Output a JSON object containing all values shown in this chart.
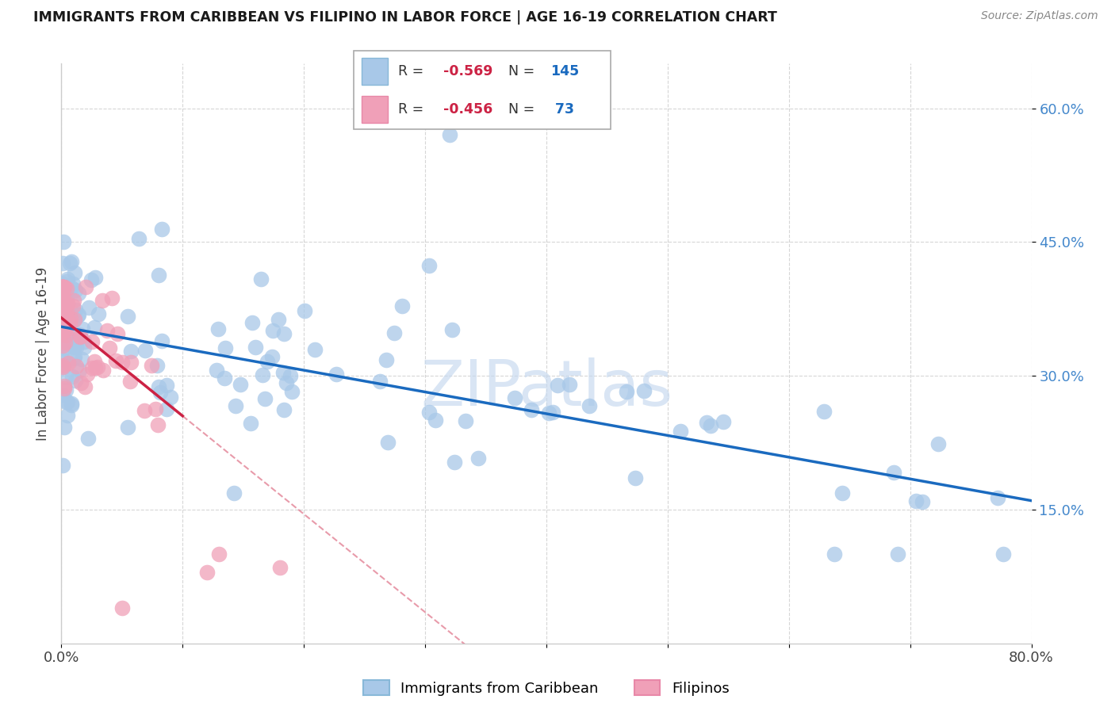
{
  "title": "IMMIGRANTS FROM CARIBBEAN VS FILIPINO IN LABOR FORCE | AGE 16-19 CORRELATION CHART",
  "source": "Source: ZipAtlas.com",
  "ylabel": "In Labor Force | Age 16-19",
  "xlim": [
    0.0,
    0.8
  ],
  "ylim": [
    0.0,
    0.65
  ],
  "yticks": [
    0.15,
    0.3,
    0.45,
    0.6
  ],
  "ytick_labels": [
    "15.0%",
    "30.0%",
    "45.0%",
    "60.0%"
  ],
  "xtick_labels": [
    "0.0%",
    "",
    "",
    "",
    "",
    "",
    "",
    "",
    "80.0%"
  ],
  "color_caribbean": "#a8c8e8",
  "color_filipino": "#f0a0b8",
  "trendline_caribbean": "#1a6abf",
  "trendline_filipino": "#cc2244",
  "watermark": "ZIPatlas"
}
